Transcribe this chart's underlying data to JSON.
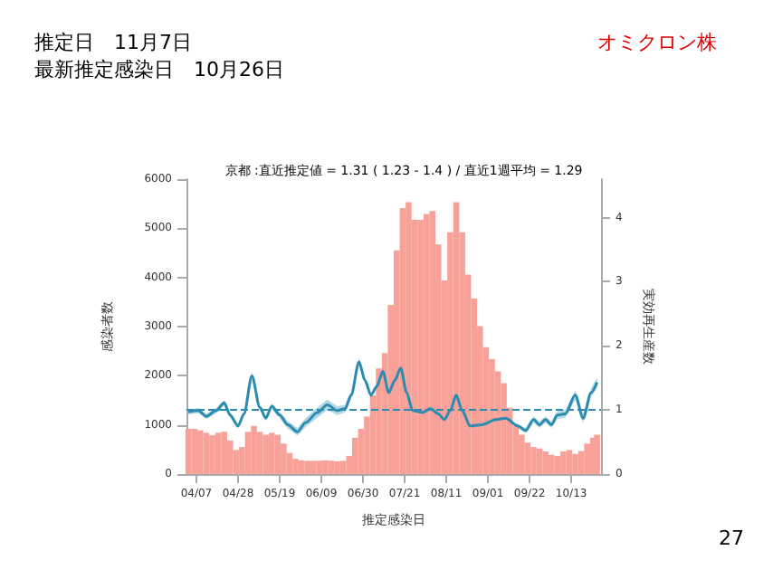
{
  "chart_data": {
    "type": "bar",
    "title": "京都 :直近推定値 = 1.31 ( 1.23 - 1.4 ) / 直近1週平均 = 1.29",
    "xlabel": "推定感染日",
    "ylabel": "感染者数",
    "y2label": "実効再生産数",
    "annotations": [
      "推定日　11月7日",
      "最新推定感染日　10月26日",
      "オミクロン株",
      "27"
    ],
    "xlim": [
      "--04-02",
      "--10-28"
    ],
    "xticks": [
      {
        "value": "--04-07",
        "label": "04/07"
      },
      {
        "value": "--04-28",
        "label": "04/28"
      },
      {
        "value": "--05-19",
        "label": "05/19"
      },
      {
        "value": "--06-09",
        "label": "06/09"
      },
      {
        "value": "--06-30",
        "label": "06/30"
      },
      {
        "value": "--07-21",
        "label": "07/21"
      },
      {
        "value": "--08-11",
        "label": "08/11"
      },
      {
        "value": "--09-01",
        "label": "09/01"
      },
      {
        "value": "--09-22",
        "label": "09/22"
      },
      {
        "value": "--10-13",
        "label": "10/13"
      }
    ],
    "ylim": [
      0,
      6000
    ],
    "yticks": [
      0,
      1000,
      2000,
      3000,
      4000,
      5000,
      6000
    ],
    "y2lim": [
      0,
      4.6
    ],
    "y2ticks": [
      0,
      1,
      2,
      3,
      4
    ],
    "grid": false,
    "ref_lines": [
      {
        "axis": "y2",
        "value": 1,
        "color": "#2b8cb0",
        "line_style": "dashed"
      }
    ],
    "series": [
      {
        "color": "#f7a199",
        "x": [
          "--04-03",
          "--04-06",
          "--04-09",
          "--04-12",
          "--04-15",
          "--04-18",
          "--04-21",
          "--04-24",
          "--04-27",
          "--04-30",
          "--05-03",
          "--05-06",
          "--05-09",
          "--05-12",
          "--05-15",
          "--05-18",
          "--05-21",
          "--05-24",
          "--05-27",
          "--05-30",
          "--06-02",
          "--06-05",
          "--06-08",
          "--06-11",
          "--06-14",
          "--06-17",
          "--06-20",
          "--06-23",
          "--06-26",
          "--06-29",
          "--07-02",
          "--07-05",
          "--07-08",
          "--07-11",
          "--07-14",
          "--07-17",
          "--07-20",
          "--07-23",
          "--07-26",
          "--07-29",
          "--08-01",
          "--08-04",
          "--08-07",
          "--08-10",
          "--08-13",
          "--08-16",
          "--08-19",
          "--08-22",
          "--08-25",
          "--08-28",
          "--08-31",
          "--09-03",
          "--09-06",
          "--09-09",
          "--09-12",
          "--09-15",
          "--09-18",
          "--09-21",
          "--09-24",
          "--09-27",
          "--09-30",
          "--10-03",
          "--10-06",
          "--10-09",
          "--10-12",
          "--10-15",
          "--10-18",
          "--10-21",
          "--10-24",
          "--10-26"
        ],
        "values": [
          920,
          920,
          890,
          840,
          790,
          840,
          860,
          680,
          490,
          550,
          860,
          980,
          860,
          800,
          840,
          800,
          620,
          430,
          310,
          280,
          270,
          270,
          270,
          280,
          270,
          260,
          270,
          370,
          740,
          920,
          1170,
          1600,
          2150,
          2460,
          3440,
          4550,
          5410,
          5530,
          5170,
          5170,
          5290,
          5350,
          4670,
          3940,
          4920,
          5530,
          4920,
          4060,
          3570,
          3010,
          2580,
          2340,
          2090,
          1850,
          1350,
          980,
          800,
          640,
          550,
          520,
          460,
          390,
          370,
          460,
          490,
          410,
          470,
          620,
          740,
          800
        ]
      },
      {
        "type": "line",
        "axis": "y2",
        "color": "#2b8cb0",
        "x": [
          "--04-03",
          "--04-08",
          "--04-12",
          "--04-17",
          "--04-21",
          "--04-24",
          "--04-28",
          "--05-01",
          "--05-05",
          "--05-09",
          "--05-12",
          "--05-15",
          "--05-19",
          "--05-23",
          "--05-28",
          "--06-01",
          "--06-07",
          "--06-12",
          "--06-17",
          "--06-21",
          "--06-24",
          "--06-28",
          "--07-01",
          "--07-04",
          "--07-07",
          "--07-10",
          "--07-13",
          "--07-16",
          "--07-19",
          "--07-22",
          "--07-25",
          "--07-30",
          "--08-03",
          "--08-07",
          "--08-10",
          "--08-13",
          "--08-16",
          "--08-19",
          "--08-23",
          "--08-29",
          "--09-05",
          "--09-10",
          "--09-16",
          "--09-20",
          "--09-24",
          "--09-27",
          "--09-30",
          "--10-03",
          "--10-06",
          "--10-10",
          "--10-15",
          "--10-19",
          "--10-23",
          "--10-26"
        ],
        "values": [
          0.97,
          0.99,
          0.9,
          0.99,
          1.11,
          0.92,
          0.75,
          0.94,
          1.53,
          1.04,
          0.87,
          1.06,
          0.92,
          0.77,
          0.66,
          0.8,
          0.96,
          1.08,
          0.99,
          1.02,
          1.23,
          1.75,
          1.46,
          1.23,
          1.37,
          1.6,
          1.27,
          1.46,
          1.65,
          1.27,
          0.99,
          0.96,
          1.02,
          0.94,
          0.85,
          0.99,
          1.23,
          0.99,
          0.75,
          0.77,
          0.85,
          0.87,
          0.75,
          0.68,
          0.85,
          0.77,
          0.85,
          0.77,
          0.92,
          0.94,
          1.23,
          0.87,
          1.27,
          1.43
        ],
        "lower": [
          0.93,
          0.95,
          0.86,
          0.95,
          1.07,
          0.88,
          0.71,
          0.9,
          1.47,
          1.0,
          0.83,
          1.02,
          0.87,
          0.71,
          0.6,
          0.73,
          0.88,
          1.0,
          0.92,
          0.96,
          1.17,
          1.69,
          1.41,
          1.19,
          1.33,
          1.56,
          1.24,
          1.43,
          1.62,
          1.25,
          0.97,
          0.94,
          1.0,
          0.92,
          0.83,
          0.97,
          1.2,
          0.96,
          0.72,
          0.75,
          0.83,
          0.85,
          0.72,
          0.64,
          0.8,
          0.72,
          0.8,
          0.72,
          0.86,
          0.88,
          1.16,
          0.8,
          1.2,
          1.35
        ],
        "upper": [
          1.01,
          1.03,
          0.94,
          1.03,
          1.15,
          0.96,
          0.79,
          0.98,
          1.59,
          1.08,
          0.91,
          1.1,
          0.97,
          0.83,
          0.72,
          0.87,
          1.04,
          1.16,
          1.06,
          1.08,
          1.29,
          1.81,
          1.51,
          1.27,
          1.41,
          1.64,
          1.3,
          1.49,
          1.68,
          1.29,
          1.01,
          0.98,
          1.04,
          0.96,
          0.87,
          1.01,
          1.26,
          1.02,
          0.78,
          0.79,
          0.87,
          0.89,
          0.78,
          0.72,
          0.9,
          0.82,
          0.9,
          0.82,
          0.98,
          1.0,
          1.3,
          0.94,
          1.34,
          1.51
        ]
      }
    ]
  }
}
